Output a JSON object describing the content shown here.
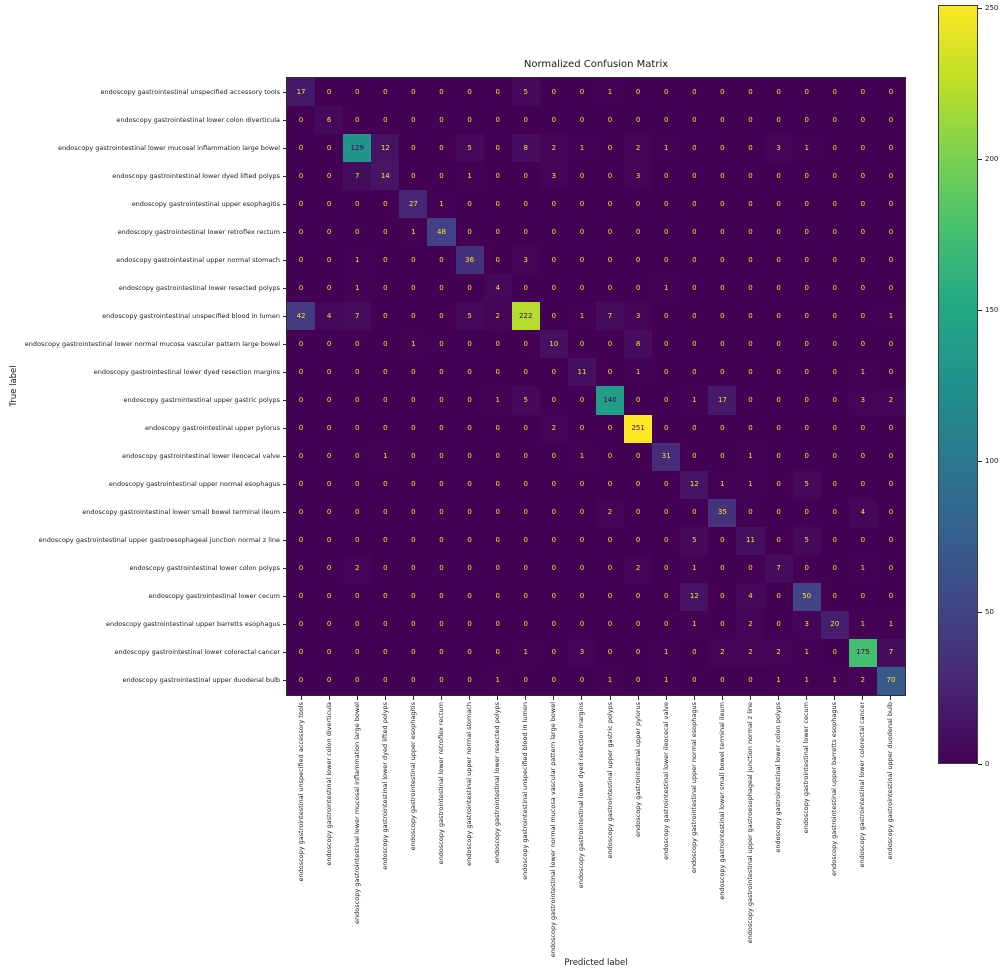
{
  "chart_data": {
    "type": "heatmap",
    "title": "Normalized Confusion Matrix",
    "xlabel": "Predicted label",
    "ylabel": "True label",
    "colormap": "viridis",
    "vmin": 0,
    "vmax": 251,
    "grid": false,
    "legend_position": "right-colorbar",
    "colorbar_ticks": [
      0,
      50,
      100,
      150,
      200,
      250
    ],
    "classes": [
      "endoscopy gastrointestinal unspecified accessory tools",
      "endoscopy gastrointestinal lower colon diverticula",
      "endoscopy gastrointestinal lower mucosal inflammation large bowel",
      "endoscopy gastrointestinal lower dyed lifted polyps",
      "endoscopy gastrointestinal upper esophagitis",
      "endoscopy gastrointestinal lower retroflex rectum",
      "endoscopy gastrointestinal upper normal stomach",
      "endoscopy gastrointestinal lower resected polyps",
      "endoscopy gastrointestinal unspecified blood in lumen",
      "endoscopy gastrointestinal lower normal mucosa vascular pattern large bowel",
      "endoscopy gastrointestinal lower dyed resection margins",
      "endoscopy gastrointestinal upper gastric polyps",
      "endoscopy gastrointestinal upper pylorus",
      "endoscopy gastrointestinal lower ileocecal valve",
      "endoscopy gastrointestinal upper normal esophagus",
      "endoscopy gastrointestinal lower small bowel terminal ileum",
      "endoscopy gastrointestinal upper gastroesophageal junction normal z line",
      "endoscopy gastrointestinal lower colon polyps",
      "endoscopy gastrointestinal lower cecum",
      "endoscopy gastrointestinal upper barretts esophagus",
      "endoscopy gastrointestinal lower colorectal cancer",
      "endoscopy gastrointestinal upper duodenal bulb"
    ],
    "matrix": [
      [
        17,
        0,
        0,
        0,
        0,
        0,
        0,
        0,
        5,
        0,
        0,
        1,
        0,
        0,
        0,
        0,
        0,
        0,
        0,
        0,
        0,
        0
      ],
      [
        0,
        6,
        0,
        0,
        0,
        0,
        0,
        0,
        0,
        0,
        0,
        0,
        0,
        0,
        0,
        0,
        0,
        0,
        0,
        0,
        0,
        0
      ],
      [
        0,
        0,
        129,
        12,
        0,
        0,
        5,
        0,
        8,
        2,
        1,
        0,
        2,
        1,
        0,
        0,
        0,
        3,
        1,
        0,
        0,
        0
      ],
      [
        0,
        0,
        7,
        14,
        0,
        0,
        1,
        0,
        0,
        3,
        0,
        0,
        3,
        0,
        0,
        0,
        0,
        0,
        0,
        0,
        0,
        0
      ],
      [
        0,
        0,
        0,
        0,
        27,
        1,
        0,
        0,
        0,
        0,
        0,
        0,
        0,
        0,
        0,
        0,
        0,
        0,
        0,
        0,
        0,
        0
      ],
      [
        0,
        0,
        0,
        0,
        1,
        48,
        0,
        0,
        0,
        0,
        0,
        0,
        0,
        0,
        0,
        0,
        0,
        0,
        0,
        0,
        0,
        0
      ],
      [
        0,
        0,
        1,
        0,
        0,
        0,
        36,
        0,
        3,
        0,
        0,
        0,
        0,
        0,
        0,
        0,
        0,
        0,
        0,
        0,
        0,
        0
      ],
      [
        0,
        0,
        1,
        0,
        0,
        0,
        0,
        4,
        0,
        0,
        0,
        0,
        0,
        1,
        0,
        0,
        0,
        0,
        0,
        0,
        0,
        0
      ],
      [
        42,
        4,
        7,
        0,
        0,
        0,
        5,
        2,
        222,
        0,
        1,
        7,
        3,
        0,
        0,
        0,
        0,
        0,
        0,
        0,
        0,
        1
      ],
      [
        0,
        0,
        0,
        0,
        1,
        0,
        0,
        0,
        0,
        10,
        0,
        0,
        8,
        0,
        0,
        0,
        0,
        0,
        0,
        0,
        0,
        0
      ],
      [
        0,
        0,
        0,
        0,
        0,
        0,
        0,
        0,
        0,
        0,
        11,
        0,
        1,
        0,
        0,
        0,
        0,
        0,
        0,
        0,
        1,
        0
      ],
      [
        0,
        0,
        0,
        0,
        0,
        0,
        0,
        1,
        5,
        0,
        0,
        140,
        0,
        0,
        1,
        17,
        0,
        0,
        0,
        0,
        3,
        2
      ],
      [
        0,
        0,
        0,
        0,
        0,
        0,
        0,
        0,
        0,
        2,
        0,
        0,
        251,
        0,
        0,
        0,
        0,
        0,
        0,
        0,
        0,
        0
      ],
      [
        0,
        0,
        0,
        1,
        0,
        0,
        0,
        0,
        0,
        0,
        1,
        0,
        0,
        31,
        0,
        0,
        1,
        0,
        0,
        0,
        0,
        0
      ],
      [
        0,
        0,
        0,
        0,
        0,
        0,
        0,
        0,
        0,
        0,
        0,
        0,
        0,
        0,
        12,
        1,
        1,
        0,
        5,
        0,
        0,
        0
      ],
      [
        0,
        0,
        0,
        0,
        0,
        0,
        0,
        0,
        0,
        0,
        0,
        2,
        0,
        0,
        0,
        35,
        0,
        0,
        0,
        0,
        4,
        0
      ],
      [
        0,
        0,
        0,
        0,
        0,
        0,
        0,
        0,
        0,
        0,
        0,
        0,
        0,
        0,
        5,
        0,
        11,
        0,
        5,
        0,
        0,
        0
      ],
      [
        0,
        0,
        2,
        0,
        0,
        0,
        0,
        0,
        0,
        0,
        0,
        0,
        2,
        0,
        1,
        0,
        0,
        7,
        0,
        0,
        1,
        0
      ],
      [
        0,
        0,
        0,
        0,
        0,
        0,
        0,
        0,
        0,
        0,
        0,
        0,
        0,
        0,
        12,
        0,
        4,
        0,
        50,
        0,
        0,
        0
      ],
      [
        0,
        0,
        0,
        0,
        0,
        0,
        0,
        0,
        0,
        0,
        0,
        0,
        0,
        0,
        1,
        0,
        2,
        0,
        3,
        20,
        1,
        1
      ],
      [
        0,
        0,
        0,
        0,
        0,
        0,
        0,
        0,
        1,
        0,
        3,
        0,
        0,
        1,
        0,
        2,
        2,
        2,
        1,
        0,
        175,
        7
      ],
      [
        0,
        0,
        0,
        0,
        0,
        0,
        0,
        1,
        0,
        0,
        0,
        1,
        0,
        1,
        0,
        0,
        0,
        1,
        1,
        1,
        2,
        70
      ]
    ]
  },
  "colors": {
    "viridis_stops": [
      "#440154",
      "#482475",
      "#414487",
      "#355f8d",
      "#2a788e",
      "#21918c",
      "#22a884",
      "#44bf70",
      "#7ad151",
      "#bddf26",
      "#fde725"
    ],
    "text_on_dark": "#fde725",
    "text_on_bright": "#440154",
    "label_color": "#1a1a1a",
    "background": "#ffffff"
  }
}
